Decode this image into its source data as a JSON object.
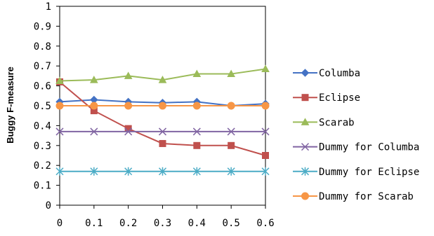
{
  "chart_data": {
    "type": "line",
    "x": [
      0,
      0.1,
      0.2,
      0.3,
      0.4,
      0.5,
      0.6
    ],
    "x_tick_labels": [
      "0",
      "0.1",
      "0.2",
      "0.3",
      "0.4",
      "0.5",
      "0.6"
    ],
    "y_tick_labels": [
      "0",
      "0.1",
      "0.2",
      "0.3",
      "0.4",
      "0.5",
      "0.6",
      "0.7",
      "0.8",
      "0.9",
      "1"
    ],
    "ylim": [
      0,
      1
    ],
    "xlabel": "",
    "ylabel": "Buggy F-measure",
    "grid": false,
    "legend_position": "right",
    "series": [
      {
        "name": "Columba",
        "color": "#4472C4",
        "marker": "diamond",
        "values": [
          0.52,
          0.53,
          0.52,
          0.515,
          0.52,
          0.5,
          0.51
        ]
      },
      {
        "name": "Eclipse",
        "color": "#C0504D",
        "marker": "square",
        "values": [
          0.62,
          0.475,
          0.385,
          0.31,
          0.3,
          0.3,
          0.25
        ]
      },
      {
        "name": "Scarab",
        "color": "#9BBB59",
        "marker": "triangle",
        "values": [
          0.625,
          0.63,
          0.65,
          0.63,
          0.66,
          0.66,
          0.685
        ]
      },
      {
        "name": "Dummy for Columba",
        "color": "#8064A2",
        "marker": "x",
        "values": [
          0.37,
          0.37,
          0.37,
          0.37,
          0.37,
          0.37,
          0.37
        ]
      },
      {
        "name": "Dummy for Eclipse",
        "color": "#4BACC6",
        "marker": "star",
        "values": [
          0.17,
          0.17,
          0.17,
          0.17,
          0.17,
          0.17,
          0.17
        ]
      },
      {
        "name": "Dummy for Scarab",
        "color": "#F79646",
        "marker": "circle",
        "values": [
          0.5,
          0.5,
          0.5,
          0.5,
          0.5,
          0.5,
          0.5
        ]
      }
    ]
  }
}
